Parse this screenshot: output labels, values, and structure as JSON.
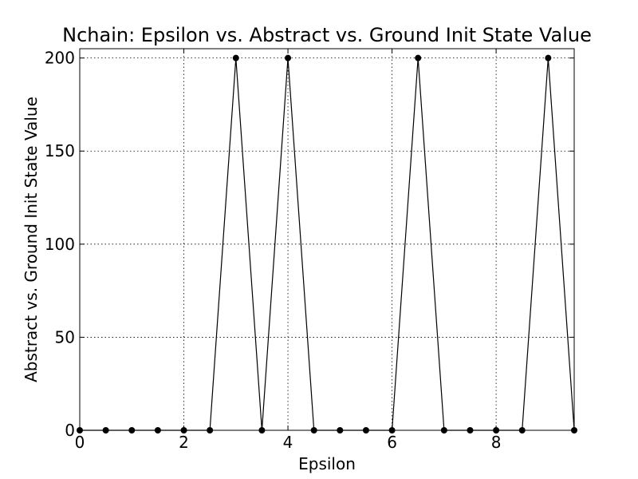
{
  "chart_data": {
    "type": "line",
    "title": "Nchain: Epsilon vs. Abstract vs. Ground Init State Value",
    "xlabel": "Epsilon",
    "ylabel": "Abstract vs. Ground Init State Value",
    "xlim": [
      0,
      9.5
    ],
    "ylim": [
      0,
      205
    ],
    "xticks": [
      0,
      2,
      4,
      6,
      8
    ],
    "yticks": [
      0,
      50,
      100,
      150,
      200
    ],
    "grid": true,
    "series": [
      {
        "color": "#000000",
        "marker": "circle",
        "x": [
          0,
          0.5,
          1,
          1.5,
          2,
          2.5,
          3,
          3.5,
          4,
          4.5,
          5,
          5.5,
          6,
          6.5,
          7,
          7.5,
          8,
          8.5,
          9,
          9.5
        ],
        "y": [
          0,
          0,
          0,
          0,
          0,
          0,
          200,
          0,
          200,
          0,
          0,
          0,
          0,
          200,
          0,
          0,
          0,
          0,
          200,
          0
        ]
      }
    ]
  }
}
